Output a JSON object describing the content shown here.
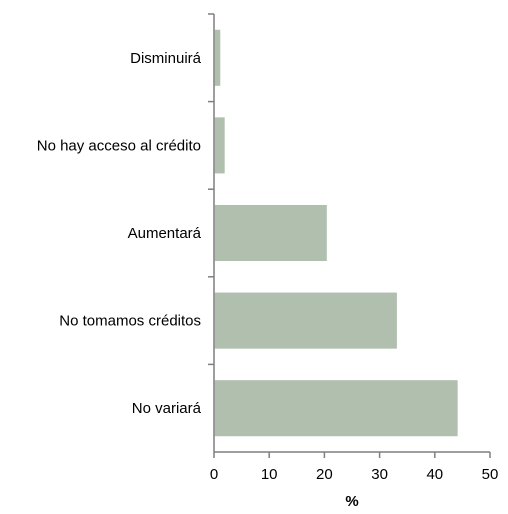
{
  "chart_data": {
    "type": "bar",
    "orientation": "horizontal",
    "categories": [
      "Disminuirá",
      "No hay acceso al crédito",
      "Aumentará",
      "No tomamos créditos",
      "No variará"
    ],
    "values": [
      1.0,
      1.8,
      20.3,
      33.0,
      44.0
    ],
    "xlabel": "%",
    "xlim": [
      0,
      50
    ],
    "xticks": [
      "0",
      "10",
      "20",
      "30",
      "40",
      "50"
    ],
    "grid": false,
    "bar_color": "#b0bfae"
  }
}
